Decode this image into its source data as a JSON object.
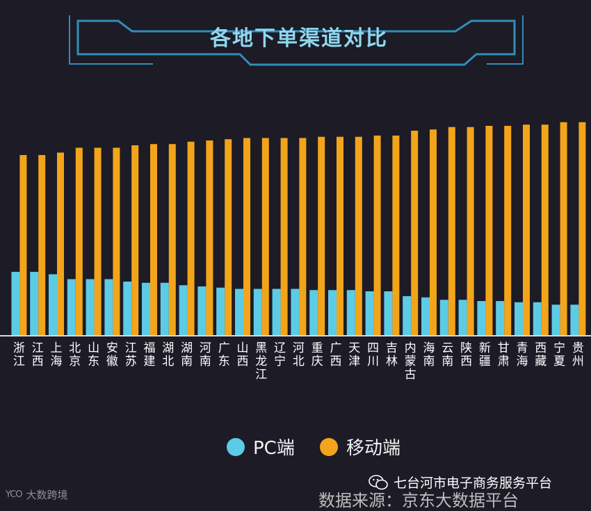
{
  "colors": {
    "background": "#1d1b26",
    "frame": "#2f8fb8",
    "title": "#8ed7ef",
    "pc": "#5ccbe6",
    "mobile": "#f2a51a",
    "axis": "#d9d9d9",
    "label": "#ffffff"
  },
  "chart_data": {
    "type": "bar",
    "title": "各地下单渠道对比",
    "categories": [
      "浙江",
      "江西",
      "上海",
      "北京",
      "山东",
      "安徽",
      "江苏",
      "福建",
      "湖北",
      "湖南",
      "河南",
      "广东",
      "山西",
      "黑龙江",
      "辽宁",
      "河北",
      "重庆",
      "广西",
      "天津",
      "四川",
      "吉林",
      "内蒙古",
      "海南",
      "云南",
      "陕西",
      "新疆",
      "甘肃",
      "青海",
      "西藏",
      "宁夏",
      "贵州"
    ],
    "series": [
      {
        "name": "PC端",
        "color": "#5ccbe6",
        "values": [
          0.26,
          0.26,
          0.25,
          0.23,
          0.23,
          0.23,
          0.22,
          0.215,
          0.215,
          0.205,
          0.2,
          0.195,
          0.19,
          0.19,
          0.19,
          0.19,
          0.185,
          0.185,
          0.185,
          0.18,
          0.18,
          0.16,
          0.155,
          0.145,
          0.145,
          0.14,
          0.14,
          0.135,
          0.135,
          0.125,
          0.125
        ]
      },
      {
        "name": "移动端",
        "color": "#f2a51a",
        "values": [
          0.74,
          0.74,
          0.75,
          0.77,
          0.77,
          0.77,
          0.78,
          0.785,
          0.785,
          0.795,
          0.8,
          0.805,
          0.81,
          0.81,
          0.81,
          0.81,
          0.815,
          0.815,
          0.815,
          0.82,
          0.82,
          0.84,
          0.845,
          0.855,
          0.855,
          0.86,
          0.86,
          0.865,
          0.865,
          0.875,
          0.875
        ]
      }
    ],
    "ylim": [
      0,
      1
    ],
    "grid": false,
    "legend_position": "bottom"
  },
  "legend": {
    "pc_label": "PC端",
    "mobile_label": "移动端"
  },
  "footer": {
    "wechat_account": "七台河市电子商务服务平台",
    "data_source": "数据来源：京东大数据平台",
    "watermark": "大数跨境",
    "watermark_logo": "YCO"
  }
}
